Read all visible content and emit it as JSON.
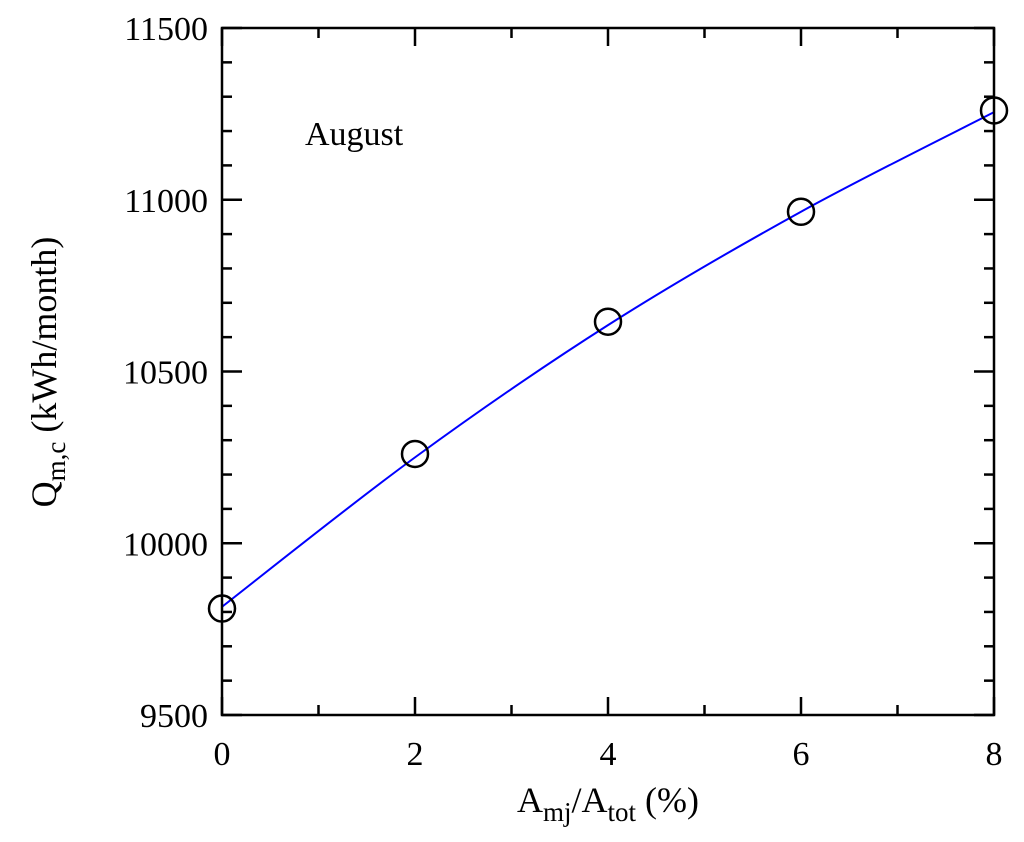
{
  "chart_data": {
    "type": "scatter",
    "title": "",
    "annotation": "August",
    "xlabel": {
      "main": "A",
      "sub1": "mj",
      "mid": "/A",
      "sub2": "tot",
      "tail": " (%)"
    },
    "ylabel": {
      "main": "Q",
      "sub": "m,c",
      "tail": " (kWh/month)"
    },
    "xlim": [
      0,
      8
    ],
    "ylim": [
      9500,
      11500
    ],
    "x_ticks": [
      0,
      2,
      4,
      6,
      8
    ],
    "x_minor_ticks": [
      1,
      3,
      5,
      7
    ],
    "y_ticks": [
      9500,
      10000,
      10500,
      11000,
      11500
    ],
    "y_minor_step": 100,
    "grid": false,
    "series": [
      {
        "marker": "open-circle",
        "color": "#000000",
        "x": [
          0,
          2,
          4,
          6,
          8
        ],
        "y": [
          9810,
          10260,
          10645,
          10965,
          11260
        ]
      },
      {
        "style": "smooth-line",
        "color": "#0000ff",
        "x": [
          0,
          2,
          4,
          6,
          8
        ],
        "y": [
          9815,
          10250,
          10635,
          10965,
          11255
        ]
      }
    ]
  }
}
